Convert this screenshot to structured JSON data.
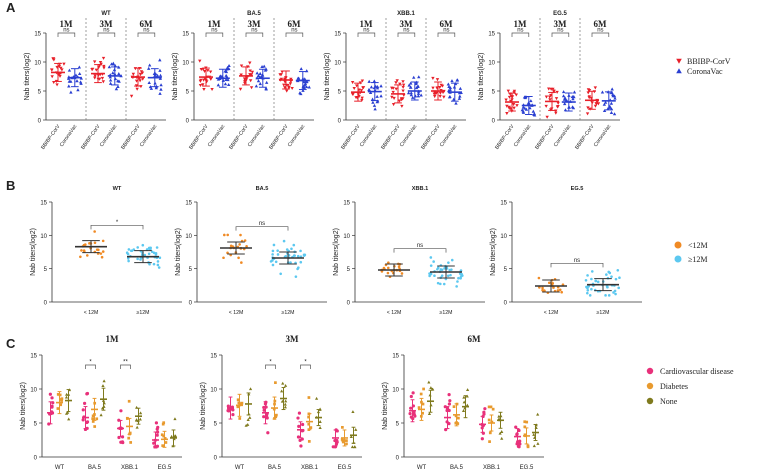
{
  "colors": {
    "red": "#e8202a",
    "blue": "#2a3fd1",
    "orange": "#f08a24",
    "cyan": "#5cc8f0",
    "pink": "#e8307a",
    "dgold": "#e89a2e",
    "olive": "#7f7a1e"
  },
  "chart_data": [
    {
      "id": "A",
      "panel_letter": "A",
      "type": "scatter",
      "ylabel": "Nab titers(log2)",
      "ylim": [
        0,
        15
      ],
      "yticks": [
        "0",
        "5",
        "10",
        "15"
      ],
      "legend": [
        {
          "label": "BBIBP-CorV",
          "marker": "triangle-down",
          "color": "#e8202a"
        },
        {
          "label": "CoronaVac",
          "marker": "triangle-up",
          "color": "#2a3fd1"
        }
      ],
      "time_labels": [
        "1M",
        "3M",
        "6M"
      ],
      "xtick_labels": [
        "BBIBP-CorV",
        "CoronaVac",
        "BBIBP-CorV",
        "CoronaVac",
        "BBIBP-CorV",
        "CoronaVac"
      ],
      "subpanels": [
        {
          "title": "WT",
          "sig": [
            "ns",
            "ns",
            "ns"
          ],
          "means": [
            8.2,
            7.3,
            8.0,
            7.6,
            7.4,
            7.3
          ]
        },
        {
          "title": "BA.5",
          "sig": [
            "ns",
            "ns",
            "ns"
          ],
          "means": [
            7.4,
            7.2,
            7.6,
            7.2,
            6.9,
            6.8
          ]
        },
        {
          "title": "XBB.1",
          "sig": [
            "ns",
            "ns",
            "ns"
          ],
          "means": [
            4.8,
            4.9,
            4.5,
            5.0,
            5.0,
            4.8
          ]
        },
        {
          "title": "EG.5",
          "sig": [
            "ns",
            "ns",
            "ns"
          ],
          "means": [
            3.1,
            2.5,
            3.2,
            3.1,
            3.4,
            3.3
          ]
        }
      ]
    },
    {
      "id": "B",
      "panel_letter": "B",
      "type": "scatter",
      "ylabel": "Nab titers(log2)",
      "ylim": [
        0,
        15
      ],
      "yticks": [
        "0",
        "5",
        "10",
        "15"
      ],
      "categories": [
        "< 12M",
        "≥12M"
      ],
      "legend": [
        {
          "label": "<12M",
          "color": "#f08a24"
        },
        {
          "label": "≥12M",
          "color": "#5cc8f0"
        }
      ],
      "subpanels": [
        {
          "title": "WT",
          "sig": "*",
          "means": [
            8.3,
            6.8
          ]
        },
        {
          "title": "BA.5",
          "sig": "ns",
          "means": [
            8.1,
            6.6
          ]
        },
        {
          "title": "XBB.1",
          "sig": "ns",
          "means": [
            4.8,
            4.5
          ]
        },
        {
          "title": "EG.5",
          "sig": "ns",
          "means": [
            2.4,
            2.6
          ]
        }
      ]
    },
    {
      "id": "C",
      "panel_letter": "C",
      "type": "scatter",
      "ylabel": "Nab titers(log2)",
      "ylim": [
        0,
        15
      ],
      "yticks": [
        "0",
        "5",
        "10",
        "15"
      ],
      "categories": [
        "WT",
        "BA.5",
        "XBB.1",
        "EG.5"
      ],
      "legend": [
        {
          "label": "Cardiovascular disease",
          "color": "#e8307a"
        },
        {
          "label": "Diabetes",
          "color": "#e89a2e"
        },
        {
          "label": "None",
          "color": "#7f7a1e"
        }
      ],
      "subpanels": [
        {
          "title": "1M",
          "means": [
            [
              6.5,
              8.0,
              8.3
            ],
            [
              5.8,
              7.0,
              8.5
            ],
            [
              4.2,
              4.5,
              6.0
            ],
            [
              2.5,
              2.6,
              2.8
            ]
          ],
          "sig": [
            {
              "cat": 1,
              "label": "*"
            },
            {
              "cat": 2,
              "label": "**"
            }
          ]
        },
        {
          "title": "3M",
          "means": [
            [
              7.2,
              7.6,
              7.8
            ],
            [
              6.5,
              7.2,
              8.6
            ],
            [
              4.0,
              5.2,
              5.8
            ],
            [
              2.8,
              2.8,
              3.2
            ]
          ],
          "sig": [
            {
              "cat": 1,
              "label": "*"
            },
            {
              "cat": 2,
              "label": "*"
            }
          ]
        },
        {
          "title": "6M",
          "means": [
            [
              6.8,
              7.0,
              8.2
            ],
            [
              5.8,
              6.2,
              7.4
            ],
            [
              4.8,
              5.0,
              5.4
            ],
            [
              3.0,
              3.1,
              3.6
            ]
          ],
          "sig": []
        }
      ]
    }
  ]
}
